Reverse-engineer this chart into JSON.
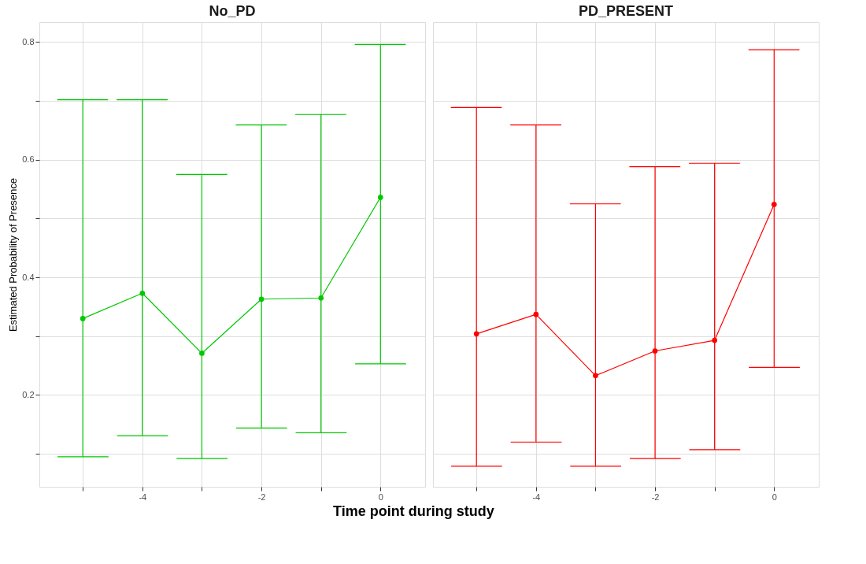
{
  "chart_data": [
    {
      "type": "line",
      "title": "No_PD",
      "xlabel": "Time point during study",
      "ylabel": "Estimated Probability of Presence",
      "x": [
        -5,
        -4,
        -3,
        -2,
        -1,
        0
      ],
      "series": [
        {
          "color": "#00c800",
          "values": [
            0.33,
            0.373,
            0.271,
            0.363,
            0.365,
            0.536
          ],
          "errors": [
            [
              0.095,
              0.702
            ],
            [
              0.131,
              0.702
            ],
            [
              0.092,
              0.575
            ],
            [
              0.144,
              0.659
            ],
            [
              0.136,
              0.677
            ],
            [
              0.253,
              0.796
            ]
          ]
        }
      ],
      "xlim": [
        -5.73,
        0.75
      ],
      "ylim": [
        0.044,
        0.834
      ],
      "xticks": [
        {
          "value": -5,
          "label": null
        },
        -4,
        {
          "value": -3,
          "label": null
        },
        -2,
        {
          "value": -1,
          "label": null
        },
        0
      ],
      "yticks": [
        {
          "value": 0.1,
          "label": null
        },
        0.2,
        {
          "value": 0.3,
          "label": null
        },
        0.4,
        {
          "value": 0.5,
          "label": null
        },
        0.6,
        {
          "value": 0.7,
          "label": null
        },
        0.8
      ],
      "grid": true,
      "marker": "circle",
      "line_style": "solid"
    },
    {
      "type": "line",
      "title": "PD_PRESENT",
      "x": [
        -5,
        -4,
        -3,
        -2,
        -1,
        0
      ],
      "series": [
        {
          "color": "#ff0000",
          "values": [
            0.304,
            0.337,
            0.233,
            0.275,
            0.293,
            0.524
          ],
          "errors": [
            [
              0.079,
              0.689
            ],
            [
              0.12,
              0.659
            ],
            [
              0.079,
              0.525
            ],
            [
              0.092,
              0.588
            ],
            [
              0.107,
              0.594
            ],
            [
              0.247,
              0.787
            ]
          ]
        }
      ],
      "xlim": [
        -5.73,
        0.75
      ],
      "ylim": [
        0.044,
        0.834
      ],
      "xticks": [
        {
          "value": -5,
          "label": null
        },
        -4,
        {
          "value": -3,
          "label": null
        },
        -2,
        {
          "value": -1,
          "label": null
        },
        0
      ],
      "yticks": [
        {
          "value": 0.1,
          "label": null
        },
        0.2,
        {
          "value": 0.3,
          "label": null
        },
        0.4,
        {
          "value": 0.5,
          "label": null
        },
        0.6,
        {
          "value": 0.7,
          "label": null
        },
        0.8
      ],
      "grid": true,
      "marker": "circle",
      "line_style": "solid",
      "tick_labels": "x"
    }
  ]
}
